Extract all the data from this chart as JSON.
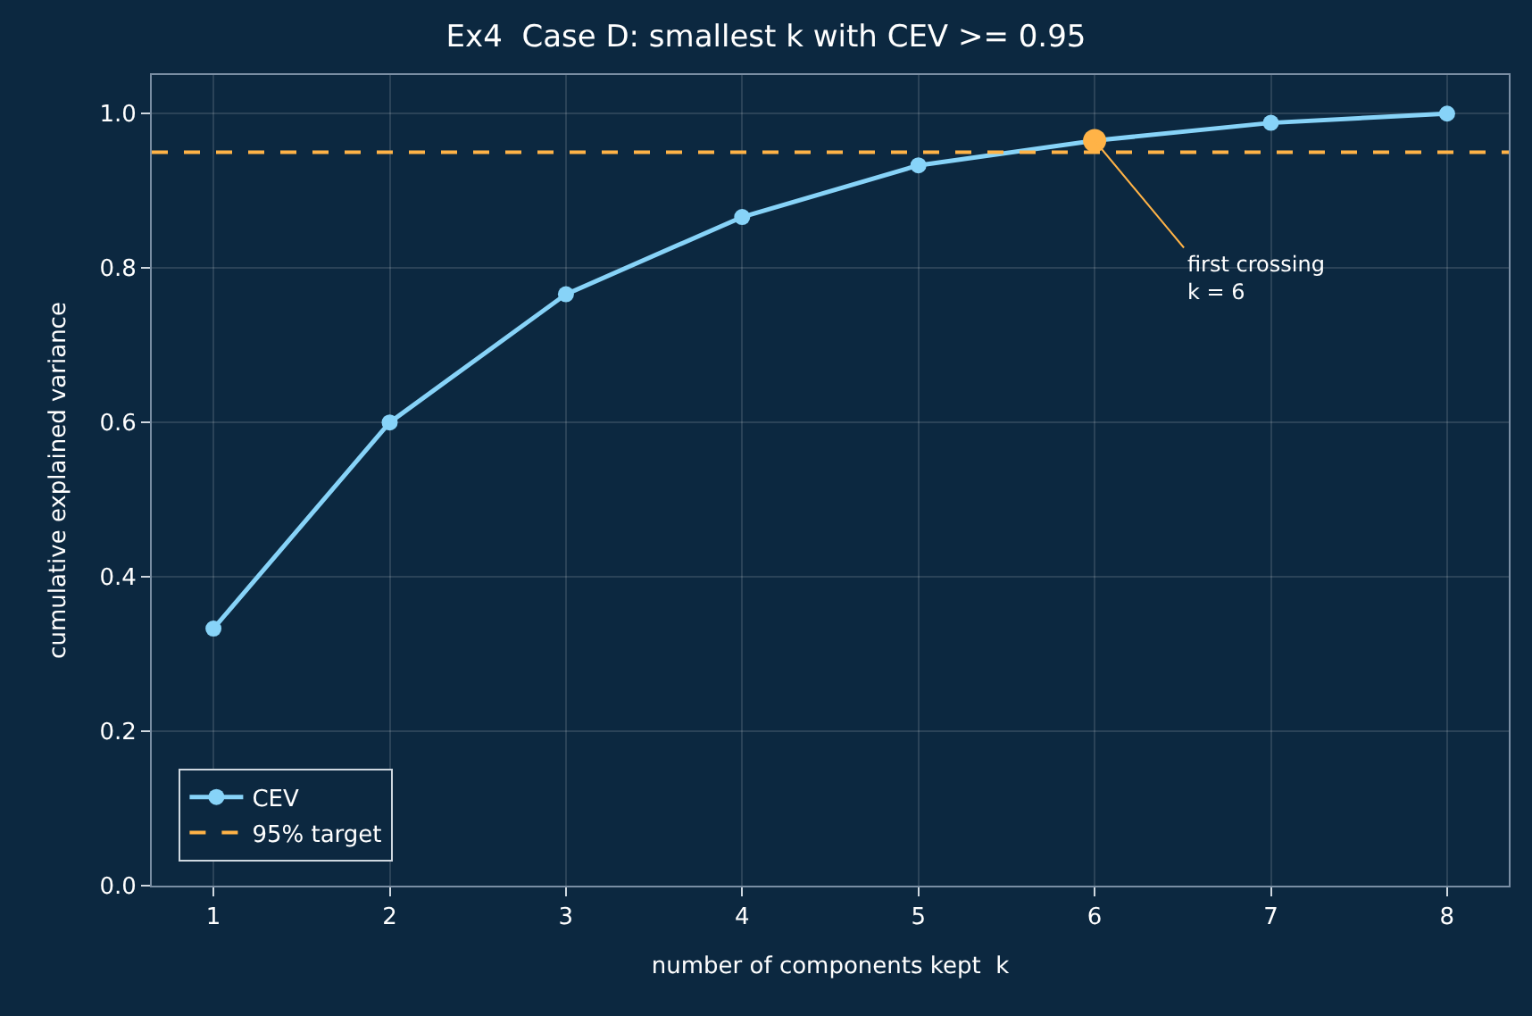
{
  "chart_data": {
    "type": "line",
    "title": "Ex4  Case D: smallest k with CEV >= 0.95",
    "xlabel": "number of components kept  k",
    "ylabel": "cumulative explained variance",
    "x": [
      1,
      2,
      3,
      4,
      5,
      6,
      7,
      8
    ],
    "series": [
      {
        "name": "CEV",
        "color": "#87d3f8",
        "values": [
          0.333,
          0.6,
          0.766,
          0.866,
          0.933,
          0.965,
          0.988,
          1.0
        ]
      },
      {
        "type": "scatter",
        "color": "#ffb347",
        "x": [
          6
        ],
        "values": [
          0.965
        ]
      }
    ],
    "ref_lines": [
      {
        "axis": "y",
        "value": 0.95,
        "label": "95% target",
        "color": "#ffb347",
        "line_style": "dashed"
      }
    ],
    "annotations": [
      {
        "text": "first crossing\nk = 6",
        "x": 6,
        "y": 0.965
      }
    ],
    "xlim": [
      0.65,
      8.35
    ],
    "xticks": [
      1,
      2,
      3,
      4,
      5,
      6,
      7,
      8
    ],
    "ylim": [
      0,
      1.05
    ],
    "yticks": [
      {
        "value": 0,
        "label": "0.0"
      },
      0.2,
      0.4,
      0.6,
      0.8,
      {
        "value": 1,
        "label": "1.0"
      }
    ],
    "grid": true,
    "legend": "bottom left",
    "marker": "circle",
    "line_style": "solid"
  }
}
